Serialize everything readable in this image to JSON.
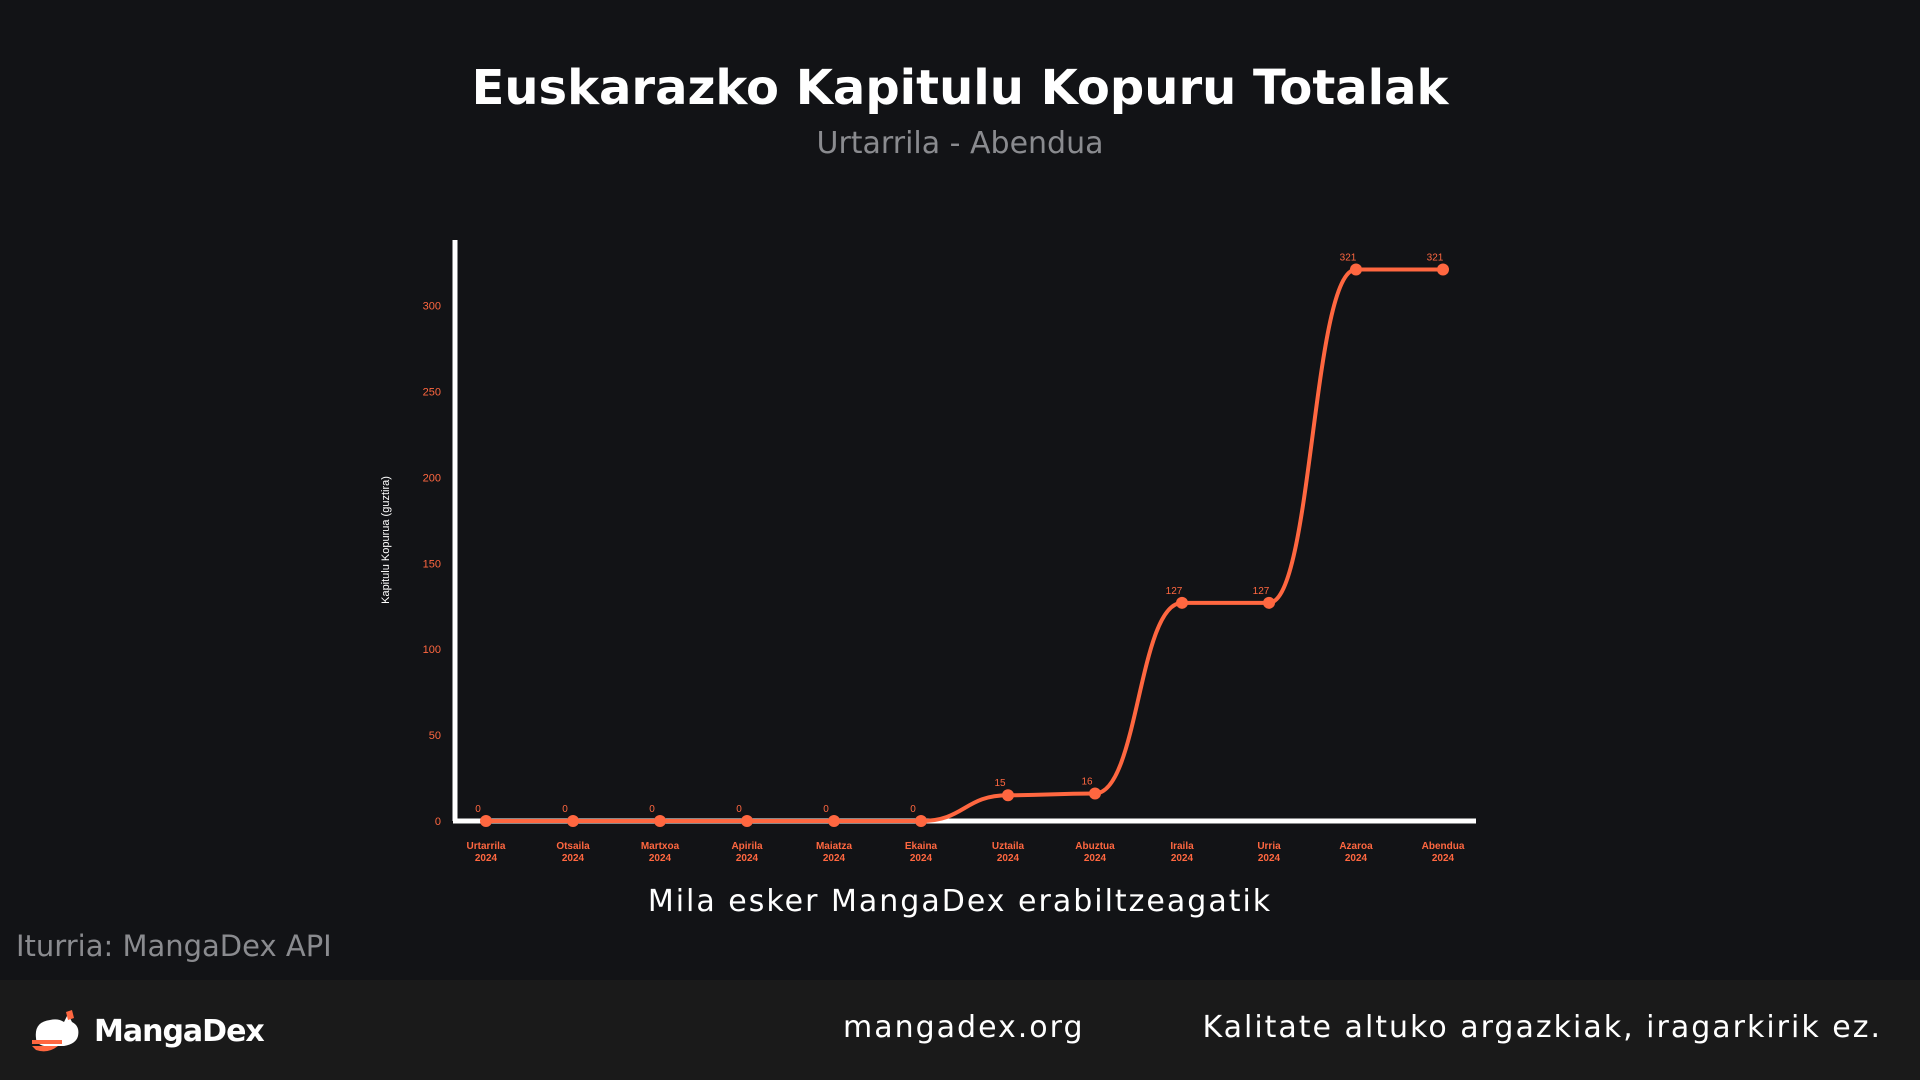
{
  "title": "Euskarazko Kapitulu Kopuru Totalak",
  "subtitle": "Urtarrila - Abendua",
  "thanks": "Mila esker MangaDex erabiltzeagatik",
  "source": "Iturria: MangaDex API",
  "footer": {
    "logo_icon": "mangadex-cat-logo-icon",
    "brand": "MangaDex",
    "site": "mangadex.org",
    "tagline": "Kalitate altuko argazkiak, iragarkirik ez."
  },
  "colors": {
    "accent": "#ff6740",
    "background": "#121316",
    "footer": "#1a1a1a",
    "axis": "#ffffff"
  },
  "chart_data": {
    "type": "line",
    "ylabel": "Kapitulu Kopurua (guztira)",
    "xlabel": "",
    "ylim": [
      0,
      340
    ],
    "yticks": [
      0,
      50,
      100,
      150,
      200,
      250,
      300
    ],
    "categories": [
      [
        "Urtarrila",
        "2024"
      ],
      [
        "Otsaila",
        "2024"
      ],
      [
        "Martxoa",
        "2024"
      ],
      [
        "Apirila",
        "2024"
      ],
      [
        "Maiatza",
        "2024"
      ],
      [
        "Ekaina",
        "2024"
      ],
      [
        "Uztaila",
        "2024"
      ],
      [
        "Abuztua",
        "2024"
      ],
      [
        "Iraila",
        "2024"
      ],
      [
        "Urria",
        "2024"
      ],
      [
        "Azaroa",
        "2024"
      ],
      [
        "Abendua",
        "2024"
      ]
    ],
    "values": [
      0,
      0,
      0,
      0,
      0,
      0,
      15,
      16,
      127,
      127,
      321,
      321
    ],
    "grid": false
  }
}
